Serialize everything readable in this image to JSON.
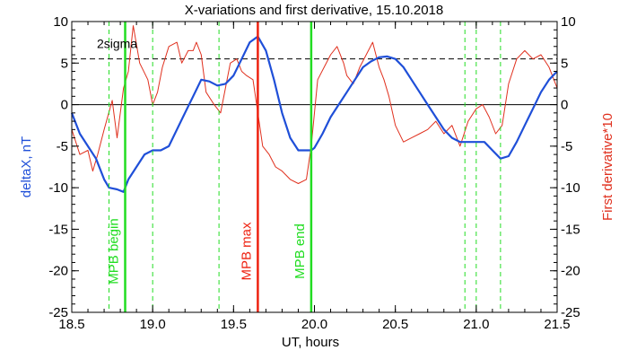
{
  "chart_data": {
    "type": "line",
    "title": "X-variations and first derivative, 15.10.2018",
    "xlabel": "UT, hours",
    "ylabel_left": "deltaX, nT",
    "ylabel_right": "First derivative*10",
    "xlim": [
      18.5,
      21.5
    ],
    "ylim": [
      -25,
      10
    ],
    "x_ticks": [
      {
        "value": 18.5,
        "label": "18.5"
      },
      {
        "value": 19.0,
        "label": "19.0"
      },
      {
        "value": 19.5,
        "label": "19.5"
      },
      {
        "value": 20.0,
        "label": "20.0"
      },
      {
        "value": 20.5,
        "label": "20.5"
      },
      {
        "value": 21.0,
        "label": "21.0"
      },
      {
        "value": 21.5,
        "label": "21.5"
      }
    ],
    "y_ticks_left": [
      {
        "value": 10,
        "label": "10"
      },
      {
        "value": 5,
        "label": "5"
      },
      {
        "value": 0,
        "label": "0"
      },
      {
        "value": -5,
        "label": "-5"
      },
      {
        "value": -10,
        "label": "-10"
      },
      {
        "value": -15,
        "label": "-15"
      },
      {
        "value": -20,
        "label": "-20"
      },
      {
        "value": -25,
        "label": "-25"
      }
    ],
    "y_ticks_right": [
      {
        "value": 10,
        "label": "10"
      },
      {
        "value": 5,
        "label": "5"
      },
      {
        "value": 0,
        "label": "0"
      },
      {
        "value": -5,
        "label": "-5"
      },
      {
        "value": -10,
        "label": "-10"
      },
      {
        "value": -15,
        "label": "-15"
      },
      {
        "value": -20,
        "label": "-20"
      },
      {
        "value": -25,
        "label": "-25"
      }
    ],
    "sigma_level": 5.5,
    "sigma_label": "2sigma",
    "zero_line": 0,
    "series": [
      {
        "color": "#1f4fd8",
        "x": [
          18.5,
          18.55,
          18.6,
          18.65,
          18.7,
          18.73,
          18.78,
          18.82,
          18.85,
          18.9,
          18.95,
          19.0,
          19.05,
          19.1,
          19.15,
          19.2,
          19.25,
          19.3,
          19.35,
          19.4,
          19.45,
          19.5,
          19.55,
          19.6,
          19.65,
          19.7,
          19.75,
          19.8,
          19.85,
          19.9,
          19.95,
          19.98,
          20.0,
          20.05,
          20.1,
          20.15,
          20.2,
          20.25,
          20.3,
          20.35,
          20.4,
          20.45,
          20.5,
          20.55,
          20.6,
          20.65,
          20.7,
          20.75,
          20.8,
          20.85,
          20.9,
          20.95,
          21.0,
          21.05,
          21.1,
          21.15,
          21.2,
          21.25,
          21.3,
          21.35,
          21.4,
          21.45,
          21.5
        ],
        "y": [
          -1.0,
          -3.5,
          -5.0,
          -6.5,
          -9.0,
          -10.0,
          -10.2,
          -10.5,
          -9.0,
          -7.5,
          -6.0,
          -5.5,
          -5.5,
          -5.0,
          -3.0,
          -1.0,
          1.0,
          3.0,
          2.8,
          2.3,
          2.5,
          3.5,
          5.5,
          7.5,
          8.2,
          6.5,
          3.0,
          -1.0,
          -4.0,
          -5.5,
          -5.5,
          -5.5,
          -5.2,
          -3.5,
          -1.5,
          0.0,
          1.5,
          3.0,
          4.5,
          5.2,
          5.7,
          5.8,
          5.5,
          4.5,
          3.0,
          1.5,
          0.0,
          -1.5,
          -3.0,
          -4.0,
          -4.5,
          -4.5,
          -4.5,
          -4.5,
          -5.5,
          -6.5,
          -6.2,
          -4.5,
          -2.5,
          -0.5,
          1.5,
          3.0,
          4.0
        ]
      },
      {
        "color": "#e0301e",
        "x": [
          18.5,
          18.55,
          18.6,
          18.63,
          18.66,
          18.7,
          18.75,
          18.78,
          18.82,
          18.85,
          18.88,
          18.92,
          18.97,
          19.0,
          19.03,
          19.06,
          19.1,
          19.15,
          19.18,
          19.22,
          19.25,
          19.27,
          19.3,
          19.33,
          19.38,
          19.42,
          19.45,
          19.48,
          19.52,
          19.55,
          19.58,
          19.62,
          19.65,
          19.68,
          19.72,
          19.76,
          19.8,
          19.85,
          19.9,
          19.95,
          19.98,
          20.02,
          20.06,
          20.1,
          20.14,
          20.18,
          20.2,
          20.24,
          20.28,
          20.32,
          20.36,
          20.4,
          20.43,
          20.46,
          20.5,
          20.55,
          20.6,
          20.65,
          20.7,
          20.75,
          20.8,
          20.85,
          20.9,
          20.95,
          21.0,
          21.04,
          21.08,
          21.12,
          21.16,
          21.2,
          21.25,
          21.3,
          21.35,
          21.4,
          21.45,
          21.5
        ],
        "y": [
          -3.0,
          -6.0,
          -5.5,
          -8.0,
          -6.0,
          -3.0,
          0.5,
          -4.0,
          2.0,
          4.0,
          9.5,
          5.0,
          3.0,
          0.0,
          1.5,
          4.5,
          7.0,
          7.5,
          5.0,
          6.5,
          6.5,
          7.5,
          6.0,
          1.5,
          0.0,
          -1.0,
          2.0,
          5.0,
          5.5,
          4.0,
          3.5,
          3.0,
          -1.0,
          -5.0,
          -6.0,
          -7.5,
          -8.0,
          -9.0,
          -9.5,
          -9.0,
          -5.0,
          3.0,
          4.5,
          6.0,
          7.0,
          5.0,
          3.5,
          2.5,
          4.5,
          6.0,
          7.5,
          4.5,
          3.0,
          1.0,
          -2.5,
          -4.5,
          -4.0,
          -3.5,
          -3.0,
          -2.0,
          -3.5,
          -2.5,
          -5.0,
          -2.0,
          -0.5,
          0.0,
          -1.5,
          -3.5,
          -2.5,
          2.5,
          5.5,
          6.5,
          5.5,
          6.0,
          4.5,
          2.0
        ]
      }
    ],
    "vlines": [
      {
        "x": 18.83,
        "color": "#22dd22",
        "style": "solid",
        "label": "MPB begin"
      },
      {
        "x": 19.65,
        "color": "#ee2211",
        "style": "solid",
        "label": "MPB max"
      },
      {
        "x": 19.98,
        "color": "#22dd22",
        "style": "solid",
        "label": "MPB end"
      },
      {
        "x": 18.73,
        "color": "#22dd22",
        "style": "dashed",
        "label": ""
      },
      {
        "x": 19.0,
        "color": "#22dd22",
        "style": "dashed",
        "label": ""
      },
      {
        "x": 19.41,
        "color": "#22dd22",
        "style": "dashed",
        "label": ""
      },
      {
        "x": 20.93,
        "color": "#22dd22",
        "style": "dashed",
        "label": ""
      },
      {
        "x": 21.0,
        "color": "#22dd22",
        "style": "dashed",
        "label": ""
      },
      {
        "x": 21.15,
        "color": "#22dd22",
        "style": "dashed",
        "label": ""
      }
    ],
    "colors": {
      "left_axis_label": "#1f4fd8",
      "right_axis_label": "#e0301e",
      "axes": "#000000"
    }
  }
}
